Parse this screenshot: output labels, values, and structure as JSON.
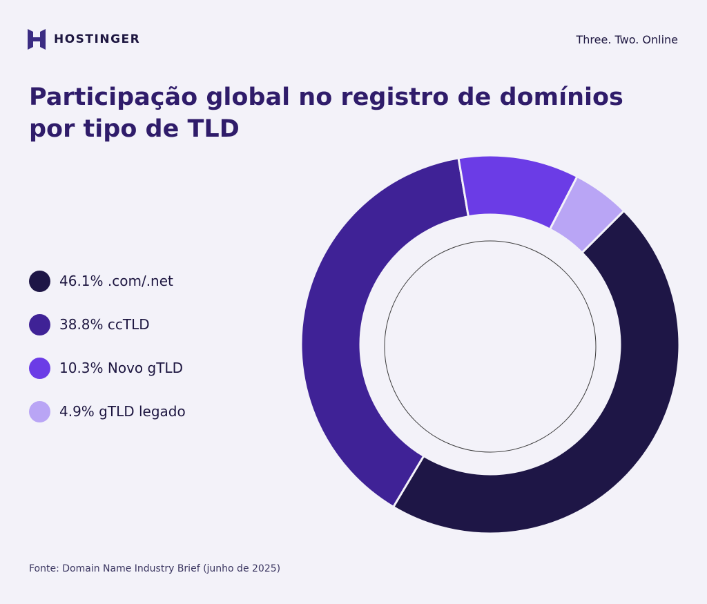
{
  "header": {
    "brand": "HOSTINGER",
    "tagline": "Three. Two. Online",
    "logo_icon": "hostinger-h-logo-icon"
  },
  "title": "Participação global no registro de domínios por tipo de TLD",
  "chart_data": {
    "type": "pie",
    "variant": "donut",
    "title": "Participação global no registro de domínios por tipo de TLD",
    "categories": [
      ".com/.net",
      "ccTLD",
      "Novo gTLD",
      "gTLD legado"
    ],
    "values": [
      46.1,
      38.8,
      10.3,
      4.9
    ],
    "unit": "%",
    "colors": [
      "#1e1646",
      "#3f2296",
      "#6b3ce6",
      "#b9a5f5"
    ],
    "legend_position": "left",
    "legend_labels": [
      "46.1% .com/.net",
      "38.8% ccTLD",
      "10.3% Novo gTLD",
      "4.9% gTLD legado"
    ]
  },
  "source": "Fonte: Domain Name Industry Brief (junho de 2025)"
}
